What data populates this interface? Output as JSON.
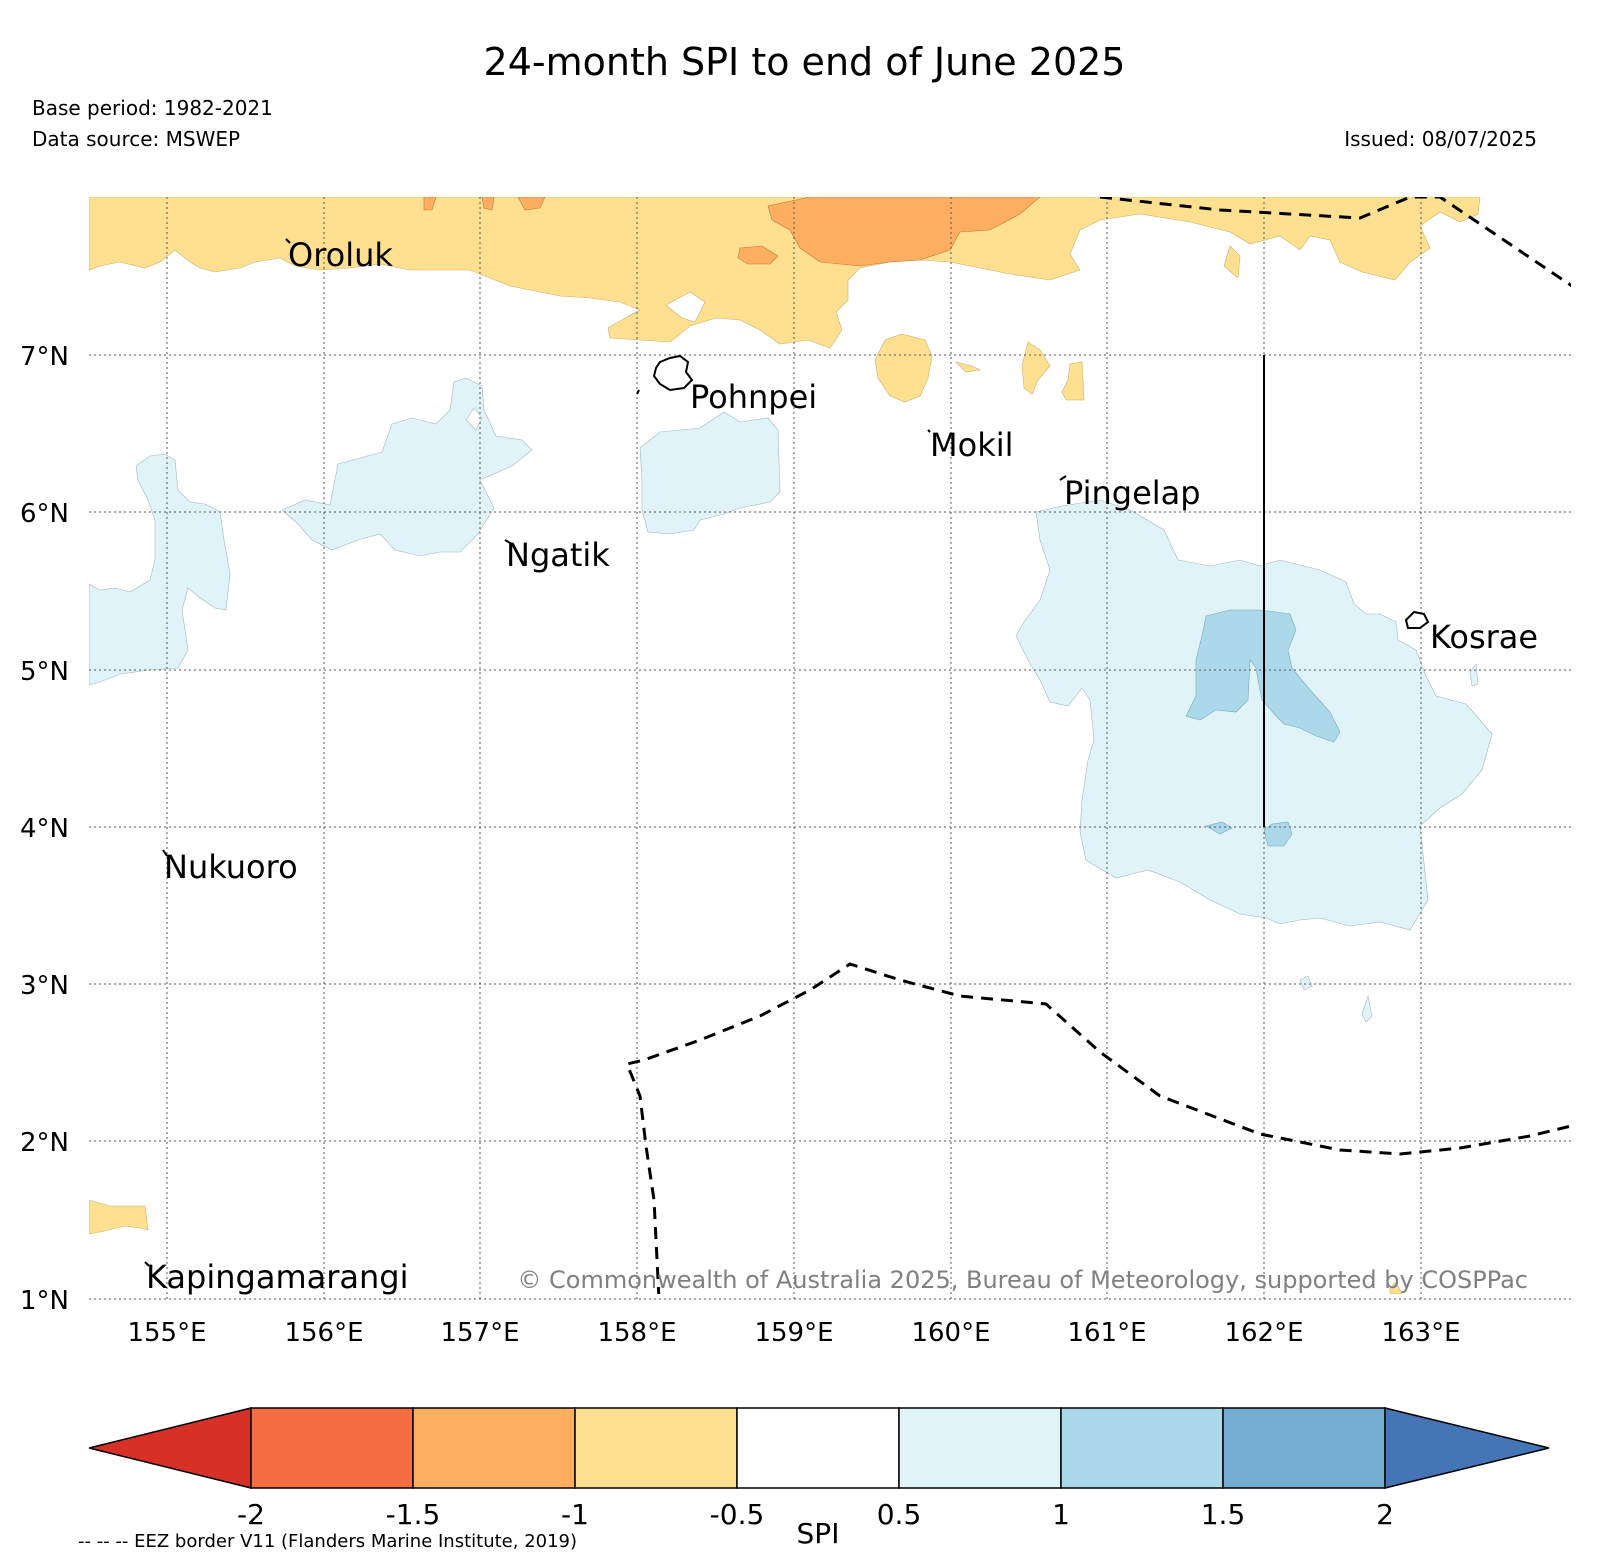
{
  "title": "24-month SPI to end of June 2025",
  "base_period": "Base period: 1982-2021",
  "data_source": "Data source: MSWEP",
  "issued": "Issued: 08/07/2025",
  "lat_labels": [
    "7°N",
    "6°N",
    "5°N",
    "4°N",
    "3°N",
    "2°N",
    "1°N"
  ],
  "lon_labels": [
    "155°E",
    "156°E",
    "157°E",
    "158°E",
    "159°E",
    "160°E",
    "161°E",
    "162°E",
    "163°E"
  ],
  "places": [
    "Oroluk",
    "Pohnpei",
    "Mokil",
    "Pingelap",
    "Ngatik",
    "Kosrae",
    "Nukuoro",
    "Kapingamarangi"
  ],
  "copyright": "© Commonwealth of Australia 2025, Bureau of Meteorology, supported by COSPPac",
  "colorbar": {
    "label": "SPI",
    "ticks": [
      "-2",
      "-1.5",
      "-1",
      "-0.5",
      "0.5",
      "1",
      "1.5",
      "2"
    ],
    "colors": [
      "#d73027",
      "#f46d43",
      "#fdae61",
      "#fee090",
      "#ffffff",
      "#e0f3f8",
      "#abd9e9",
      "#74add1",
      "#4575b4"
    ]
  },
  "eez_note": "-- -- -- EEZ border V11 (Flanders Marine Institute, 2019)"
}
